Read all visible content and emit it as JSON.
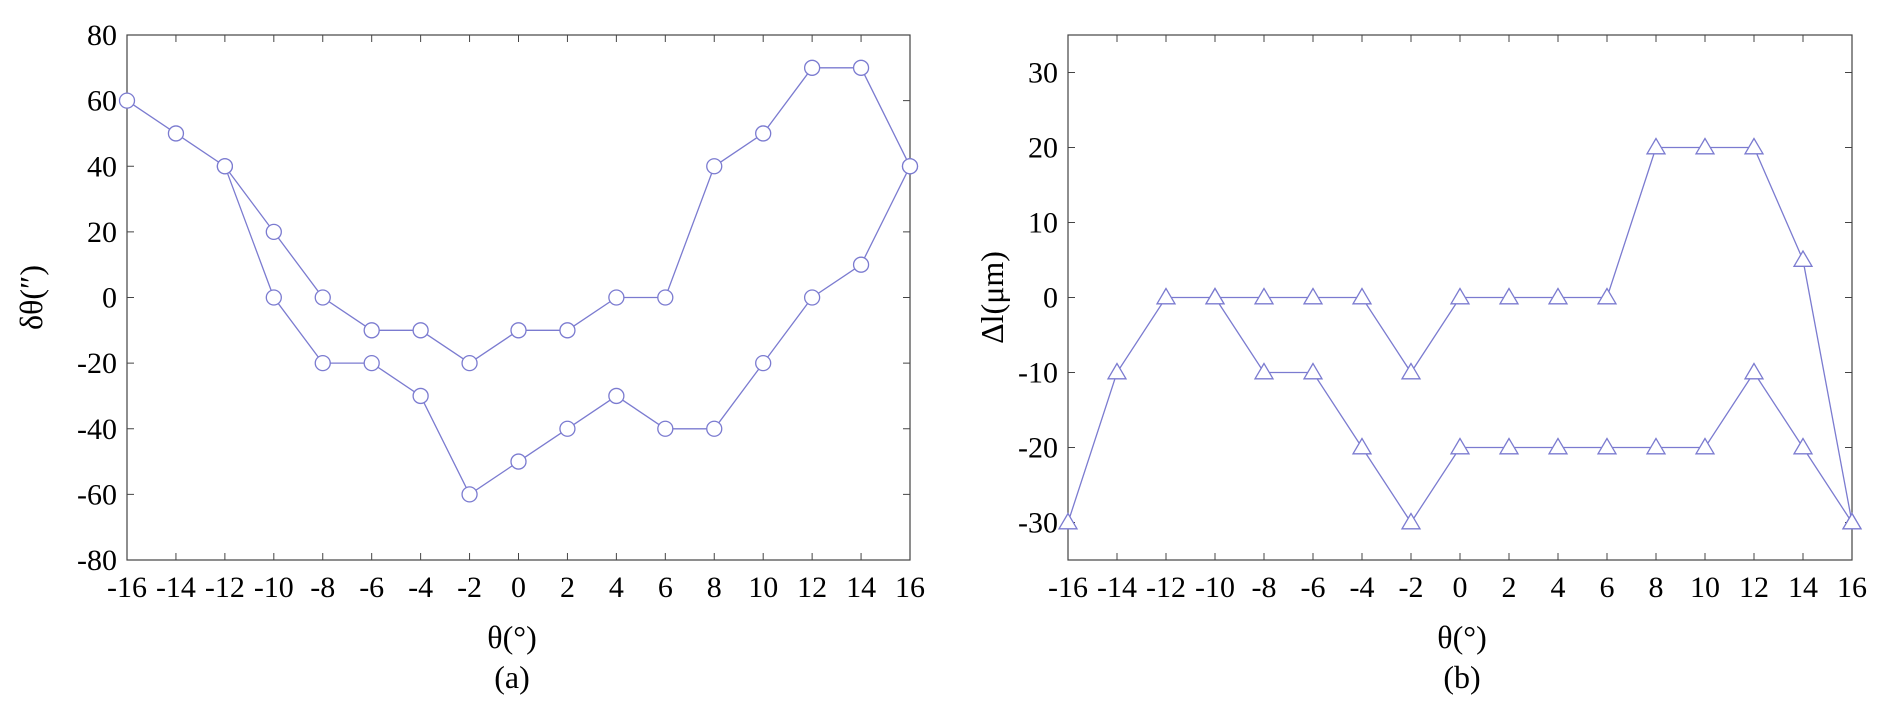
{
  "chart_data": [
    {
      "type": "line",
      "panel_label": "(a)",
      "xlabel": "θ(°)",
      "ylabel": "δθ(″)",
      "xlim": [
        -16,
        16
      ],
      "ylim": [
        -80,
        80
      ],
      "xticks": [
        -16,
        -14,
        -12,
        -10,
        -8,
        -6,
        -4,
        -2,
        0,
        2,
        4,
        6,
        8,
        10,
        12,
        14,
        16
      ],
      "yticks": [
        -80,
        -60,
        -40,
        -20,
        0,
        20,
        40,
        60,
        80
      ],
      "marker": "circle",
      "color": "#7b7bd0",
      "grid": false,
      "series": [
        {
          "x": [
            -16,
            -14,
            -12,
            -10,
            -8,
            -6,
            -4,
            -2,
            0,
            2,
            4,
            6,
            8,
            10,
            12,
            14,
            16
          ],
          "y": [
            60,
            50,
            40,
            20,
            0,
            -10,
            -10,
            -20,
            -10,
            -10,
            0,
            0,
            40,
            50,
            70,
            70,
            40
          ]
        },
        {
          "x": [
            -12,
            -10,
            -8,
            -6,
            -4,
            -2,
            0,
            2,
            4,
            6,
            8,
            10,
            12,
            14,
            16
          ],
          "y": [
            40,
            0,
            -20,
            -20,
            -30,
            -60,
            -50,
            -40,
            -30,
            -40,
            -40,
            -20,
            0,
            10,
            40
          ]
        }
      ]
    },
    {
      "type": "line",
      "panel_label": "(b)",
      "xlabel": "θ(°)",
      "ylabel": "Δl(μm)",
      "xlim": [
        -16,
        16
      ],
      "ylim": [
        -35,
        35
      ],
      "xticks": [
        -16,
        -14,
        -12,
        -10,
        -8,
        -6,
        -4,
        -2,
        0,
        2,
        4,
        6,
        8,
        10,
        12,
        14,
        16
      ],
      "yticks": [
        -30,
        -20,
        -10,
        0,
        10,
        20,
        30
      ],
      "marker": "triangle",
      "color": "#7b7bd0",
      "grid": false,
      "series": [
        {
          "x": [
            -16,
            -14,
            -12,
            -10,
            -8,
            -6,
            -4,
            -2,
            0,
            2,
            4,
            6,
            8,
            10,
            12,
            14,
            16
          ],
          "y": [
            -30,
            -10,
            0,
            0,
            0,
            0,
            0,
            -10,
            0,
            0,
            0,
            0,
            20,
            20,
            20,
            5,
            -30
          ]
        },
        {
          "x": [
            -10,
            -8,
            -6,
            -4,
            -2,
            0,
            2,
            4,
            6,
            8,
            10,
            12,
            14,
            16
          ],
          "y": [
            0,
            -10,
            -10,
            -20,
            -30,
            -20,
            -20,
            -20,
            -20,
            -20,
            -20,
            -10,
            -20,
            -30
          ]
        }
      ]
    }
  ]
}
